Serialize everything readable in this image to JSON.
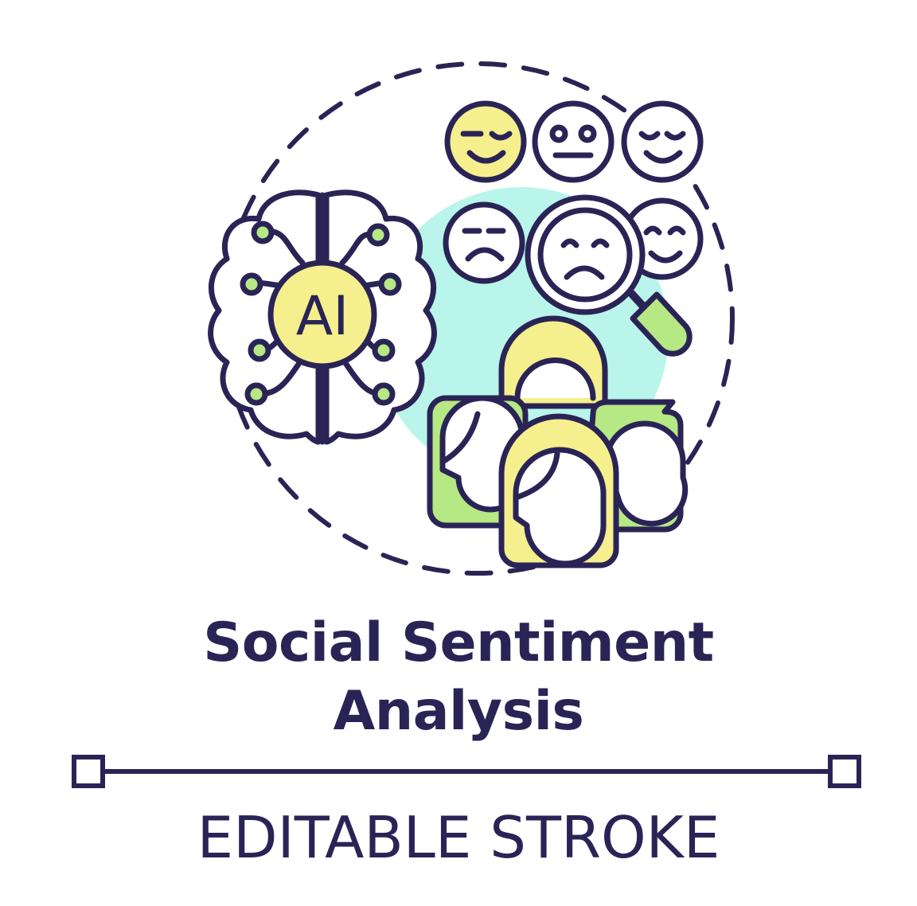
{
  "badge": {
    "label": "AI"
  },
  "title": {
    "line1": "Social Sentiment",
    "line2": "Analysis"
  },
  "subtitle": "EDITABLE STROKE",
  "icons": [
    "brain-icon",
    "neutral-face-icon",
    "happy-face-icon",
    "sad-face-icon",
    "magnifier-icon",
    "people-group-icon"
  ],
  "colors": {
    "stroke": "#2a2456",
    "yellow": "#f5ef8d",
    "green": "#b6e884",
    "mint": "#b9f5ea",
    "green_dot": "#b6e884",
    "white": "#ffffff"
  }
}
